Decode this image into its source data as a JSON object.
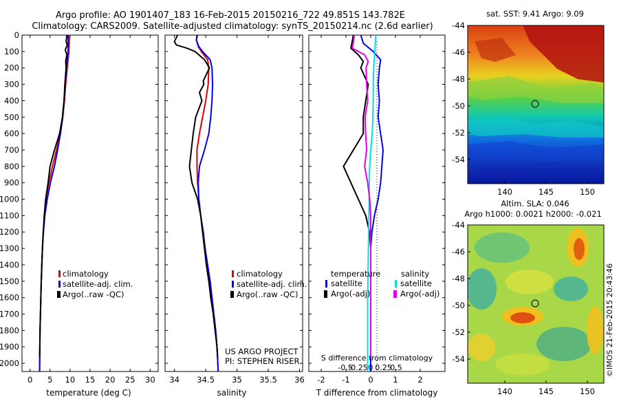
{
  "header": {
    "title_line1": "Argo profile: AO 1901407_183 16-Feb-2015 20150216_722 49.851S 143.782E",
    "title_line2": "Climatology: CARS2009. Satellite-adjusted climatology: synTS_20150214.nc (2.6d earlier)"
  },
  "colors": {
    "climatology": "#e00000",
    "satellite": "#0000ee",
    "argo": "#000000",
    "satellite_salinity": "#00e0e0",
    "argo_adj_salinity": "#e000e0"
  },
  "depth_ticks": [
    "0",
    "100",
    "200",
    "300",
    "400",
    "500",
    "600",
    "700",
    "800",
    "900",
    "1000",
    "1100",
    "1200",
    "1300",
    "1400",
    "1500",
    "1600",
    "1700",
    "1800",
    "1900",
    "2000"
  ],
  "temperature_panel": {
    "xlabel": "temperature (deg C)",
    "xticks": [
      "0",
      "5",
      "10",
      "15",
      "20",
      "25",
      "30"
    ],
    "legend": [
      "climatology",
      "satellite-adj. clim.",
      "Argo(..raw -QC)"
    ]
  },
  "salinity_panel": {
    "xlabel": "salinity",
    "xticks": [
      "34",
      "34.5",
      "35",
      "35.5",
      "36"
    ],
    "legend": [
      "climatology",
      "satellite-adj. clim.",
      "Argo(..raw -QC)"
    ],
    "credit_line1": "US ARGO PROJECT",
    "credit_line2": "PI: STEPHEN RISER"
  },
  "difference_panel": {
    "xlabel": "T difference from climatology",
    "xticks": [
      "-2",
      "-1",
      "0",
      "1",
      "2"
    ],
    "top_label": "S difference from climatology",
    "top_ticks": [
      "-0.5",
      "-0.25",
      "0",
      "0.25",
      "0.5"
    ],
    "legend_temperature_header": "temperature",
    "legend_salinity_header": "salinity",
    "legend_temperature": [
      "satellite",
      "Argo(-adj)"
    ],
    "legend_salinity": [
      "satellite",
      "Argo(-adj)"
    ]
  },
  "sst_map": {
    "title": "sat. SST: 9.41  Argo: 9.09",
    "xticks": [
      "140",
      "145",
      "150"
    ],
    "yticks": [
      "-44",
      "-46",
      "-48",
      "-50",
      "-52",
      "-54"
    ]
  },
  "sla_map": {
    "title_line1": "Altim. SLA: 0.046",
    "title_line2": "Argo h1000: 0.0021 h2000: -0.021",
    "xticks": [
      "140",
      "145",
      "150"
    ],
    "yticks": [
      "-44",
      "-46",
      "-48",
      "-50",
      "-52",
      "-54"
    ]
  },
  "watermark": "©IMOS 21-Feb-2015 20:43:46",
  "chart_data": [
    {
      "type": "line",
      "ylabel": "",
      "xlabel": "temperature (deg C)",
      "xlim": [
        -2,
        32
      ],
      "ylim": [
        2050,
        0
      ],
      "series": [
        {
          "name": "climatology",
          "color": "#e00000",
          "points": [
            [
              9.9,
              0
            ],
            [
              9.7,
              100
            ],
            [
              9.3,
              200
            ],
            [
              8.9,
              300
            ],
            [
              8.6,
              400
            ],
            [
              8.2,
              500
            ],
            [
              7.6,
              600
            ],
            [
              6.6,
              700
            ],
            [
              5.6,
              800
            ],
            [
              4.7,
              900
            ],
            [
              4.0,
              1000
            ],
            [
              3.6,
              1100
            ],
            [
              3.3,
              1200
            ],
            [
              3.1,
              1300
            ],
            [
              2.95,
              1400
            ],
            [
              2.8,
              1500
            ],
            [
              2.7,
              1600
            ],
            [
              2.6,
              1700
            ],
            [
              2.5,
              1800
            ],
            [
              2.45,
              1900
            ],
            [
              2.4,
              2050
            ]
          ]
        },
        {
          "name": "satellite-adj. clim.",
          "color": "#0000ee",
          "points": [
            [
              9.5,
              0
            ],
            [
              9.5,
              100
            ],
            [
              9.1,
              200
            ],
            [
              8.8,
              300
            ],
            [
              8.5,
              400
            ],
            [
              8.1,
              500
            ],
            [
              7.6,
              600
            ],
            [
              6.9,
              700
            ],
            [
              6.1,
              800
            ],
            [
              5.1,
              900
            ],
            [
              4.3,
              1000
            ],
            [
              3.7,
              1100
            ],
            [
              3.35,
              1200
            ],
            [
              3.1,
              1300
            ],
            [
              2.95,
              1400
            ],
            [
              2.8,
              1500
            ],
            [
              2.7,
              1600
            ],
            [
              2.6,
              1700
            ],
            [
              2.5,
              1800
            ],
            [
              2.45,
              1900
            ],
            [
              2.4,
              2050
            ]
          ]
        },
        {
          "name": "Argo(..raw -QC)",
          "color": "#000000",
          "points": [
            [
              9.2,
              0
            ],
            [
              9.0,
              40
            ],
            [
              9.3,
              60
            ],
            [
              8.8,
              90
            ],
            [
              9.2,
              120
            ],
            [
              8.9,
              160
            ],
            [
              9.0,
              200
            ],
            [
              8.7,
              300
            ],
            [
              8.5,
              400
            ],
            [
              8.1,
              500
            ],
            [
              7.4,
              600
            ],
            [
              6.1,
              700
            ],
            [
              5.0,
              800
            ],
            [
              4.5,
              900
            ],
            [
              3.9,
              1000
            ],
            [
              3.55,
              1100
            ],
            [
              3.3,
              1200
            ],
            [
              3.1,
              1300
            ],
            [
              2.95,
              1400
            ],
            [
              2.8,
              1500
            ],
            [
              2.7,
              1600
            ],
            [
              2.6,
              1700
            ],
            [
              2.5,
              1800
            ],
            [
              2.45,
              1900
            ],
            [
              2.4,
              1960
            ]
          ]
        }
      ]
    },
    {
      "type": "line",
      "xlabel": "salinity",
      "xlim": [
        33.85,
        36.05
      ],
      "ylim": [
        2050,
        0
      ],
      "series": [
        {
          "name": "climatology",
          "color": "#e00000",
          "points": [
            [
              34.37,
              0
            ],
            [
              34.35,
              30
            ],
            [
              34.38,
              70
            ],
            [
              34.43,
              100
            ],
            [
              34.53,
              150
            ],
            [
              34.55,
              200
            ],
            [
              34.54,
              300
            ],
            [
              34.5,
              400
            ],
            [
              34.45,
              500
            ],
            [
              34.4,
              600
            ],
            [
              34.36,
              700
            ],
            [
              34.36,
              800
            ],
            [
              34.37,
              900
            ],
            [
              34.39,
              1000
            ],
            [
              34.42,
              1100
            ],
            [
              34.46,
              1200
            ],
            [
              34.49,
              1300
            ],
            [
              34.53,
              1400
            ],
            [
              34.57,
              1500
            ],
            [
              34.6,
              1600
            ],
            [
              34.63,
              1700
            ],
            [
              34.66,
              1800
            ],
            [
              34.68,
              1900
            ],
            [
              34.7,
              2050
            ]
          ]
        },
        {
          "name": "satellite-adj. clim.",
          "color": "#0000ee",
          "points": [
            [
              34.36,
              0
            ],
            [
              34.35,
              30
            ],
            [
              34.39,
              70
            ],
            [
              34.45,
              100
            ],
            [
              34.57,
              150
            ],
            [
              34.6,
              200
            ],
            [
              34.61,
              300
            ],
            [
              34.6,
              400
            ],
            [
              34.58,
              500
            ],
            [
              34.55,
              600
            ],
            [
              34.48,
              700
            ],
            [
              34.4,
              800
            ],
            [
              34.38,
              900
            ],
            [
              34.39,
              1000
            ],
            [
              34.42,
              1100
            ],
            [
              34.46,
              1200
            ],
            [
              34.49,
              1300
            ],
            [
              34.53,
              1400
            ],
            [
              34.57,
              1500
            ],
            [
              34.6,
              1600
            ],
            [
              34.63,
              1700
            ],
            [
              34.66,
              1800
            ],
            [
              34.68,
              1900
            ],
            [
              34.7,
              2050
            ]
          ]
        },
        {
          "name": "Argo(..raw -QC)",
          "color": "#000000",
          "points": [
            [
              34.05,
              0
            ],
            [
              34.0,
              40
            ],
            [
              34.03,
              60
            ],
            [
              34.2,
              80
            ],
            [
              34.33,
              100
            ],
            [
              34.48,
              150
            ],
            [
              34.56,
              200
            ],
            [
              34.46,
              280
            ],
            [
              34.47,
              300
            ],
            [
              34.4,
              350
            ],
            [
              34.44,
              400
            ],
            [
              34.34,
              500
            ],
            [
              34.3,
              600
            ],
            [
              34.27,
              700
            ],
            [
              34.24,
              800
            ],
            [
              34.28,
              900
            ],
            [
              34.37,
              1000
            ],
            [
              34.42,
              1100
            ],
            [
              34.45,
              1200
            ],
            [
              34.48,
              1300
            ],
            [
              34.51,
              1400
            ],
            [
              34.55,
              1500
            ],
            [
              34.58,
              1600
            ],
            [
              34.62,
              1700
            ],
            [
              34.65,
              1800
            ],
            [
              34.68,
              1900
            ],
            [
              34.69,
              1960
            ]
          ]
        }
      ]
    },
    {
      "type": "line",
      "xlabel": "T difference from climatology",
      "xlim": [
        -2.5,
        3
      ],
      "ylim": [
        2050,
        0
      ],
      "series": [
        {
          "name": "temperature satellite",
          "color": "#0000ee",
          "points": [
            [
              -0.4,
              0
            ],
            [
              -0.3,
              50
            ],
            [
              0.1,
              100
            ],
            [
              0.4,
              150
            ],
            [
              0.35,
              200
            ],
            [
              0.3,
              300
            ],
            [
              0.35,
              400
            ],
            [
              0.3,
              500
            ],
            [
              0.4,
              600
            ],
            [
              0.5,
              700
            ],
            [
              0.45,
              800
            ],
            [
              0.4,
              900
            ],
            [
              0.3,
              1000
            ],
            [
              0.15,
              1100
            ],
            [
              0.05,
              1200
            ],
            [
              0,
              1300
            ],
            [
              0,
              2050
            ]
          ]
        },
        {
          "name": "temperature Argo(-adj)",
          "color": "#000000",
          "points": [
            [
              -0.7,
              0
            ],
            [
              -0.8,
              80
            ],
            [
              -0.5,
              120
            ],
            [
              -0.3,
              160
            ],
            [
              -0.4,
              200
            ],
            [
              -0.1,
              300
            ],
            [
              -0.2,
              400
            ],
            [
              -0.3,
              500
            ],
            [
              -0.3,
              600
            ],
            [
              -0.7,
              700
            ],
            [
              -1.1,
              800
            ],
            [
              -0.8,
              900
            ],
            [
              -0.5,
              1000
            ],
            [
              -0.2,
              1100
            ],
            [
              -0.05,
              1200
            ],
            [
              0,
              1300
            ],
            [
              0,
              1960
            ]
          ]
        },
        {
          "name": "salinity satellite",
          "color": "#00e0e0",
          "points": [
            [
              0.1,
              0
            ],
            [
              0.08,
              100
            ],
            [
              0.06,
              200
            ],
            [
              0.05,
              300
            ],
            [
              0.05,
              400
            ],
            [
              0.04,
              500
            ],
            [
              0.03,
              600
            ],
            [
              0,
              700
            ],
            [
              -0.02,
              800
            ],
            [
              -0.03,
              900
            ],
            [
              -0.03,
              1000
            ],
            [
              -0.04,
              1200
            ],
            [
              -0.05,
              1400
            ],
            [
              -0.06,
              1600
            ],
            [
              -0.06,
              1800
            ],
            [
              -0.06,
              2050
            ]
          ]
        },
        {
          "name": "salinity Argo(-adj)",
          "color": "#e000e0",
          "points": [
            [
              -0.32,
              0
            ],
            [
              -0.36,
              80
            ],
            [
              -0.12,
              120
            ],
            [
              -0.05,
              160
            ],
            [
              -0.09,
              200
            ],
            [
              -0.08,
              300
            ],
            [
              -0.06,
              400
            ],
            [
              -0.11,
              500
            ],
            [
              -0.1,
              600
            ],
            [
              -0.08,
              700
            ],
            [
              -0.12,
              800
            ],
            [
              -0.06,
              900
            ],
            [
              -0.02,
              1000
            ],
            [
              0,
              1100
            ],
            [
              0,
              1960
            ]
          ]
        }
      ]
    }
  ]
}
